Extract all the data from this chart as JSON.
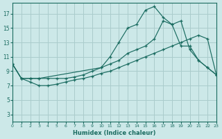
{
  "bg_color": "#cce8e8",
  "grid_color": "#aacccc",
  "line_color": "#1a6b60",
  "xlim": [
    0,
    23
  ],
  "ylim": [
    2,
    18.5
  ],
  "xticks": [
    0,
    1,
    2,
    3,
    4,
    5,
    6,
    7,
    8,
    9,
    10,
    11,
    12,
    13,
    14,
    15,
    16,
    17,
    18,
    19,
    20,
    21,
    22,
    23
  ],
  "yticks": [
    3,
    5,
    7,
    9,
    11,
    13,
    15,
    17
  ],
  "xlabel": "Humidex (Indice chaleur)",
  "line1_x": [
    0,
    1,
    2,
    3,
    10,
    11,
    12,
    13,
    14,
    15,
    16,
    17,
    18,
    19,
    20,
    21,
    22,
    23
  ],
  "line1_y": [
    10,
    8,
    8,
    8,
    9.5,
    11,
    13,
    15,
    15.5,
    17.5,
    18,
    16.5,
    15.5,
    16,
    12,
    10.5,
    9.5,
    8.5
  ],
  "line2_x": [
    0,
    1,
    2,
    3,
    4,
    5,
    6,
    7,
    8,
    9,
    10,
    11,
    12,
    13,
    14,
    15,
    16,
    17,
    18,
    19,
    20,
    21,
    22,
    23
  ],
  "line2_y": [
    10,
    8,
    8,
    8,
    8,
    8,
    8,
    8.2,
    8.5,
    9,
    9.5,
    10,
    10.5,
    11.5,
    12,
    12.5,
    13.5,
    16,
    15.5,
    12.5,
    12.5,
    10.5,
    9.5,
    8.5
  ],
  "line3_x": [
    0,
    1,
    2,
    3,
    4,
    5,
    6,
    7,
    8,
    9,
    10,
    11,
    12,
    13,
    14,
    15,
    16,
    17,
    18,
    19,
    20,
    21,
    22,
    23
  ],
  "line3_y": [
    10,
    8,
    7.5,
    7,
    7,
    7.2,
    7.5,
    7.8,
    8,
    8.3,
    8.7,
    9,
    9.5,
    10,
    10.5,
    11,
    11.5,
    12,
    12.5,
    13,
    13.5,
    14,
    13.5,
    8.5
  ]
}
